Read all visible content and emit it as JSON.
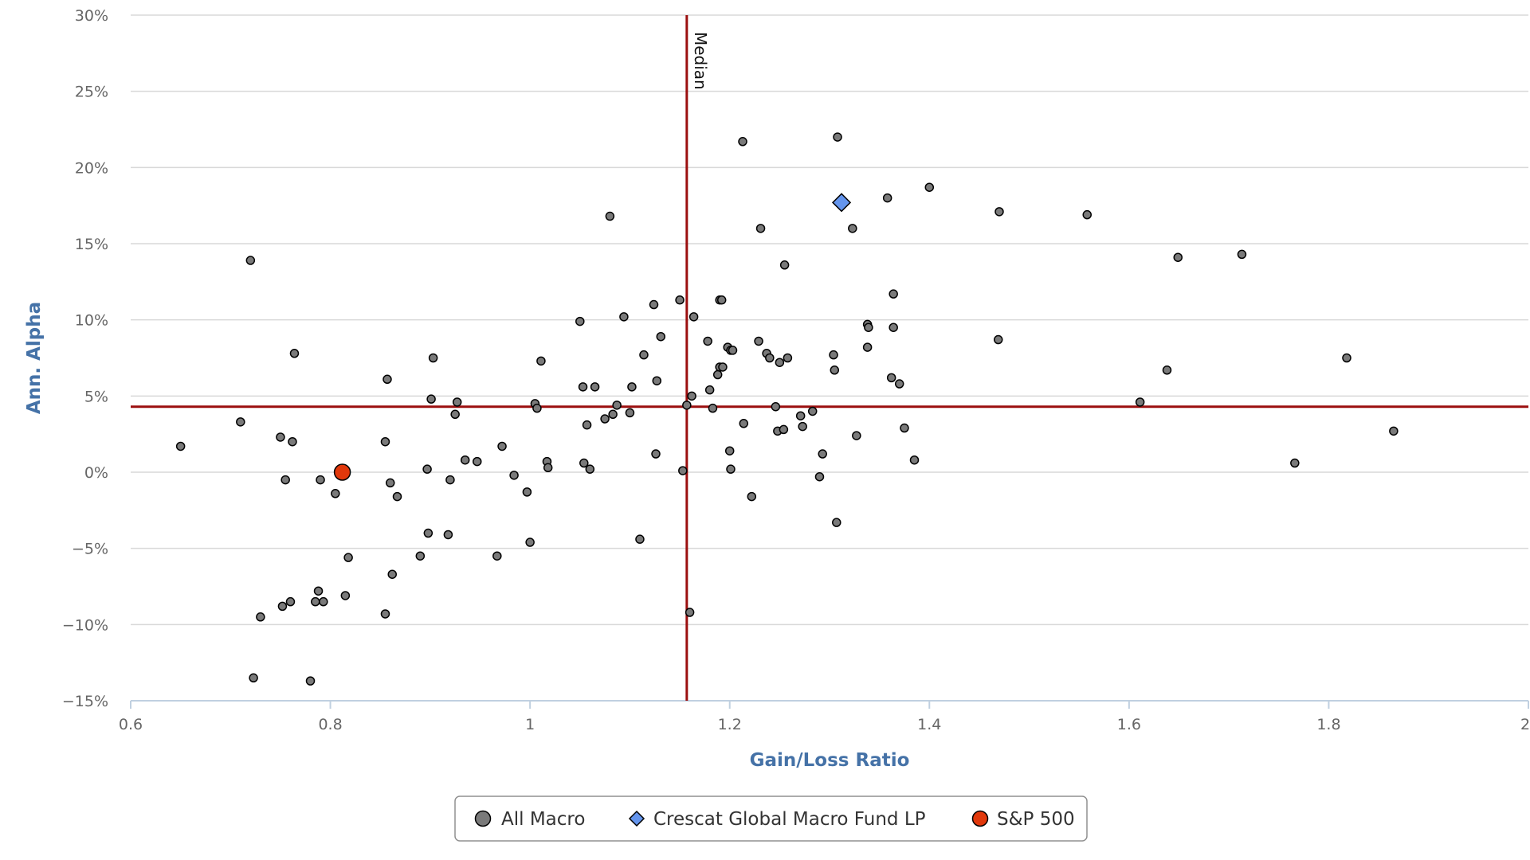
{
  "colors": {
    "grid": "#d8d8d8",
    "axis": "#c0d0e0",
    "ref_line": "#9b0f0f",
    "axis_title": "#4572A7",
    "all_macro": "#7a7a7a",
    "crescat": "#6495ED",
    "sp500": "#E1380B"
  },
  "chart_data": {
    "type": "scatter",
    "title": "",
    "xlabel": "Gain/Loss Ratio",
    "ylabel": "Ann. Alpha",
    "xlim": [
      0.6,
      2
    ],
    "ylim": [
      -15,
      30
    ],
    "x_ticks": [
      0.6,
      0.8,
      1,
      1.2,
      1.4,
      1.6,
      1.8,
      2
    ],
    "x_tick_labels": [
      "0.6",
      "0.8",
      "1",
      "1.2",
      "1.4",
      "1.6",
      "1.8",
      "2"
    ],
    "y_ticks": [
      -15,
      -10,
      -5,
      0,
      5,
      10,
      15,
      20,
      25,
      30
    ],
    "y_tick_labels": [
      "−15%",
      "−10%",
      "−5%",
      "0%",
      "5%",
      "10%",
      "15%",
      "20%",
      "25%",
      "30%"
    ],
    "grid": true,
    "legend_position": "bottom-center",
    "reference_lines": {
      "vertical": {
        "x": 1.157,
        "label": "Median"
      },
      "horizontal": {
        "y": 4.3
      }
    },
    "series": [
      {
        "name": "All Macro",
        "marker": "circle",
        "color": "#7a7a7a",
        "points": [
          [
            0.65,
            1.7
          ],
          [
            0.71,
            3.3
          ],
          [
            0.72,
            13.9
          ],
          [
            0.723,
            -13.5
          ],
          [
            0.73,
            -9.5
          ],
          [
            0.75,
            2.3
          ],
          [
            0.752,
            -8.8
          ],
          [
            0.755,
            -0.5
          ],
          [
            0.76,
            -8.5
          ],
          [
            0.762,
            2.0
          ],
          [
            0.764,
            7.8
          ],
          [
            0.78,
            -13.7
          ],
          [
            0.785,
            -8.5
          ],
          [
            0.788,
            -7.8
          ],
          [
            0.79,
            -0.5
          ],
          [
            0.793,
            -8.5
          ],
          [
            0.805,
            -1.4
          ],
          [
            0.815,
            -8.1
          ],
          [
            0.818,
            -5.6
          ],
          [
            0.855,
            2.0
          ],
          [
            0.855,
            -9.3
          ],
          [
            0.857,
            6.1
          ],
          [
            0.86,
            -0.7
          ],
          [
            0.862,
            -6.7
          ],
          [
            0.867,
            -1.6
          ],
          [
            0.89,
            -5.5
          ],
          [
            0.897,
            0.2
          ],
          [
            0.898,
            -4.0
          ],
          [
            0.901,
            4.8
          ],
          [
            0.903,
            7.5
          ],
          [
            0.918,
            -4.1
          ],
          [
            0.92,
            -0.5
          ],
          [
            0.925,
            3.8
          ],
          [
            0.927,
            4.6
          ],
          [
            0.935,
            0.8
          ],
          [
            0.947,
            0.7
          ],
          [
            0.967,
            -5.5
          ],
          [
            0.972,
            1.7
          ],
          [
            0.984,
            -0.2
          ],
          [
            0.997,
            -1.3
          ],
          [
            1.0,
            -4.6
          ],
          [
            1.005,
            4.5
          ],
          [
            1.007,
            4.2
          ],
          [
            1.011,
            7.3
          ],
          [
            1.017,
            0.7
          ],
          [
            1.018,
            0.3
          ],
          [
            1.05,
            9.9
          ],
          [
            1.053,
            5.6
          ],
          [
            1.054,
            0.6
          ],
          [
            1.057,
            3.1
          ],
          [
            1.06,
            0.2
          ],
          [
            1.065,
            5.6
          ],
          [
            1.075,
            3.5
          ],
          [
            1.08,
            16.8
          ],
          [
            1.083,
            3.8
          ],
          [
            1.087,
            4.4
          ],
          [
            1.094,
            10.2
          ],
          [
            1.1,
            3.9
          ],
          [
            1.102,
            5.6
          ],
          [
            1.11,
            -4.4
          ],
          [
            1.114,
            7.7
          ],
          [
            1.124,
            11.0
          ],
          [
            1.126,
            1.2
          ],
          [
            1.127,
            6.0
          ],
          [
            1.131,
            8.9
          ],
          [
            1.15,
            11.3
          ],
          [
            1.153,
            0.1
          ],
          [
            1.157,
            4.4
          ],
          [
            1.16,
            -9.2
          ],
          [
            1.162,
            5.0
          ],
          [
            1.164,
            10.2
          ],
          [
            1.178,
            8.6
          ],
          [
            1.18,
            5.4
          ],
          [
            1.183,
            4.2
          ],
          [
            1.188,
            6.4
          ],
          [
            1.19,
            11.3
          ],
          [
            1.192,
            11.3
          ],
          [
            1.19,
            6.9
          ],
          [
            1.193,
            6.9
          ],
          [
            1.198,
            8.2
          ],
          [
            1.2,
            1.4
          ],
          [
            1.201,
            0.2
          ],
          [
            1.201,
            8.0
          ],
          [
            1.203,
            8.0
          ],
          [
            1.213,
            21.7
          ],
          [
            1.214,
            3.2
          ],
          [
            1.222,
            -1.6
          ],
          [
            1.229,
            8.6
          ],
          [
            1.231,
            16.0
          ],
          [
            1.237,
            7.8
          ],
          [
            1.24,
            7.5
          ],
          [
            1.246,
            4.3
          ],
          [
            1.248,
            2.7
          ],
          [
            1.25,
            7.2
          ],
          [
            1.254,
            2.8
          ],
          [
            1.255,
            13.6
          ],
          [
            1.258,
            7.5
          ],
          [
            1.271,
            3.7
          ],
          [
            1.273,
            3.0
          ],
          [
            1.283,
            4.0
          ],
          [
            1.29,
            -0.3
          ],
          [
            1.293,
            1.2
          ],
          [
            1.304,
            7.7
          ],
          [
            1.305,
            6.7
          ],
          [
            1.307,
            -3.3
          ],
          [
            1.308,
            22.0
          ],
          [
            1.323,
            16.0
          ],
          [
            1.327,
            2.4
          ],
          [
            1.338,
            9.7
          ],
          [
            1.339,
            9.5
          ],
          [
            1.338,
            8.2
          ],
          [
            1.358,
            18.0
          ],
          [
            1.362,
            6.2
          ],
          [
            1.364,
            11.7
          ],
          [
            1.364,
            9.5
          ],
          [
            1.37,
            5.8
          ],
          [
            1.375,
            2.9
          ],
          [
            1.385,
            0.8
          ],
          [
            1.4,
            18.7
          ],
          [
            1.469,
            8.7
          ],
          [
            1.47,
            17.1
          ],
          [
            1.558,
            16.9
          ],
          [
            1.611,
            4.6
          ],
          [
            1.638,
            6.7
          ],
          [
            1.649,
            14.1
          ],
          [
            1.713,
            14.3
          ],
          [
            1.766,
            0.6
          ],
          [
            1.818,
            7.5
          ],
          [
            1.865,
            2.7
          ]
        ]
      },
      {
        "name": "Crescat Global Macro Fund LP",
        "marker": "diamond",
        "color": "#6495ED",
        "points": [
          [
            1.312,
            17.7
          ]
        ]
      },
      {
        "name": "S&P 500",
        "marker": "circle-large",
        "color": "#E1380B",
        "points": [
          [
            0.812,
            0.0
          ]
        ]
      }
    ]
  }
}
